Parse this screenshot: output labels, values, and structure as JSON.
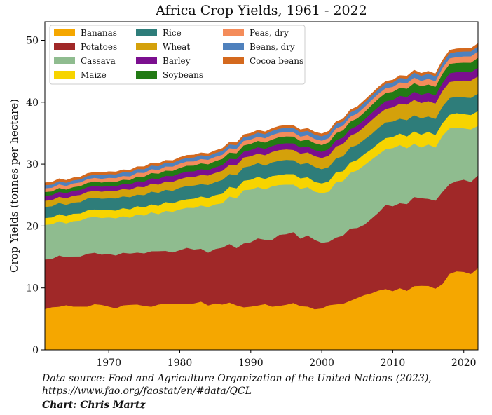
{
  "chart_data": {
    "type": "area",
    "stacked": true,
    "title": "Africa Crop Yields, 1961 - 2022",
    "ylabel": "Crop Yields (tonnes per hectare)",
    "xlabel": "",
    "xlim": [
      1961,
      2022
    ],
    "ylim": [
      0,
      53
    ],
    "xticks": [
      1970,
      1980,
      1990,
      2000,
      2010,
      2020
    ],
    "yticks": [
      0,
      10,
      20,
      30,
      40,
      50
    ],
    "legend_position": "top-left",
    "grid": false,
    "anchor_years": [
      1961,
      1962,
      1965,
      1968,
      1970,
      1972,
      1975,
      1980,
      1985,
      1990,
      1995,
      1998,
      2000,
      2005,
      2008,
      2010,
      2013,
      2016,
      2018,
      2020,
      2022
    ],
    "series": [
      {
        "name": "Bananas",
        "color": "#f5a700",
        "values": [
          6.6,
          6.9,
          7.0,
          7.4,
          7.0,
          7.2,
          7.1,
          7.4,
          7.5,
          7.0,
          7.3,
          7.0,
          6.7,
          8.4,
          9.6,
          9.5,
          10.3,
          9.9,
          12.3,
          12.6,
          13.2
        ]
      },
      {
        "name": "Potatoes",
        "color": "#a02828",
        "values": [
          8.0,
          7.8,
          8.1,
          8.3,
          8.5,
          8.5,
          8.5,
          8.7,
          8.8,
          10.4,
          11.4,
          11.5,
          10.6,
          11.3,
          12.6,
          13.7,
          14.4,
          14.2,
          14.5,
          14.9,
          15.0
        ]
      },
      {
        "name": "Cassava",
        "color": "#8fbc8f",
        "values": [
          5.6,
          5.6,
          5.7,
          5.8,
          5.9,
          5.9,
          6.1,
          6.6,
          7.2,
          8.5,
          8.0,
          7.8,
          8.0,
          9.3,
          9.4,
          9.4,
          8.6,
          8.6,
          9.0,
          8.3,
          8.0
        ]
      },
      {
        "name": "Maize",
        "color": "#f7d400",
        "values": [
          1.1,
          1.1,
          1.2,
          1.2,
          1.2,
          1.3,
          1.3,
          1.4,
          1.5,
          1.6,
          1.7,
          1.6,
          1.6,
          1.7,
          1.8,
          1.8,
          2.0,
          2.0,
          2.2,
          2.3,
          2.4
        ]
      },
      {
        "name": "Rice",
        "color": "#2e7d7a",
        "values": [
          1.8,
          1.8,
          1.8,
          1.9,
          1.9,
          1.9,
          2.0,
          2.1,
          2.1,
          2.2,
          2.3,
          2.3,
          2.3,
          2.4,
          2.5,
          2.5,
          2.6,
          2.6,
          2.7,
          2.7,
          2.8
        ]
      },
      {
        "name": "Wheat",
        "color": "#d4a10b",
        "values": [
          1.0,
          1.0,
          1.1,
          1.1,
          1.2,
          1.2,
          1.3,
          1.4,
          1.5,
          1.6,
          1.7,
          1.7,
          1.8,
          2.0,
          2.2,
          2.3,
          2.5,
          2.5,
          2.6,
          2.7,
          2.8
        ]
      },
      {
        "name": "Barley",
        "color": "#7b0f8f",
        "values": [
          0.8,
          0.8,
          0.8,
          0.8,
          0.8,
          0.8,
          0.9,
          0.9,
          0.9,
          1.0,
          1.0,
          1.0,
          1.0,
          1.1,
          1.2,
          1.2,
          1.3,
          1.3,
          1.4,
          1.4,
          1.4
        ]
      },
      {
        "name": "Soybeans",
        "color": "#227a14",
        "values": [
          0.6,
          0.6,
          0.6,
          0.7,
          0.7,
          0.7,
          0.8,
          0.9,
          1.0,
          1.0,
          1.1,
          1.1,
          1.1,
          1.2,
          1.3,
          1.3,
          1.4,
          1.4,
          1.5,
          1.5,
          1.6
        ]
      },
      {
        "name": "Peas, dry",
        "color": "#f48c5a",
        "values": [
          0.6,
          0.6,
          0.6,
          0.6,
          0.6,
          0.6,
          0.6,
          0.7,
          0.7,
          0.7,
          0.7,
          0.7,
          0.7,
          0.8,
          0.8,
          0.8,
          0.9,
          0.9,
          0.9,
          1.0,
          1.0
        ]
      },
      {
        "name": "Beans, dry",
        "color": "#4f81bd",
        "values": [
          0.5,
          0.5,
          0.5,
          0.5,
          0.6,
          0.6,
          0.6,
          0.6,
          0.6,
          0.6,
          0.7,
          0.7,
          0.7,
          0.7,
          0.7,
          0.7,
          0.8,
          0.8,
          0.8,
          0.8,
          0.8
        ]
      },
      {
        "name": "Cocoa beans",
        "color": "#d4691e",
        "values": [
          0.4,
          0.4,
          0.4,
          0.4,
          0.4,
          0.4,
          0.4,
          0.4,
          0.4,
          0.4,
          0.4,
          0.4,
          0.4,
          0.4,
          0.4,
          0.4,
          0.4,
          0.4,
          0.5,
          0.5,
          0.5
        ]
      }
    ]
  },
  "caption": {
    "source_line1": "Data source: Food and Agriculture Organization of the United Nations (2023),",
    "source_line2": "https://www.fao.org/faostat/en/#data/QCL",
    "credit": "Chart: Chris Martz"
  }
}
